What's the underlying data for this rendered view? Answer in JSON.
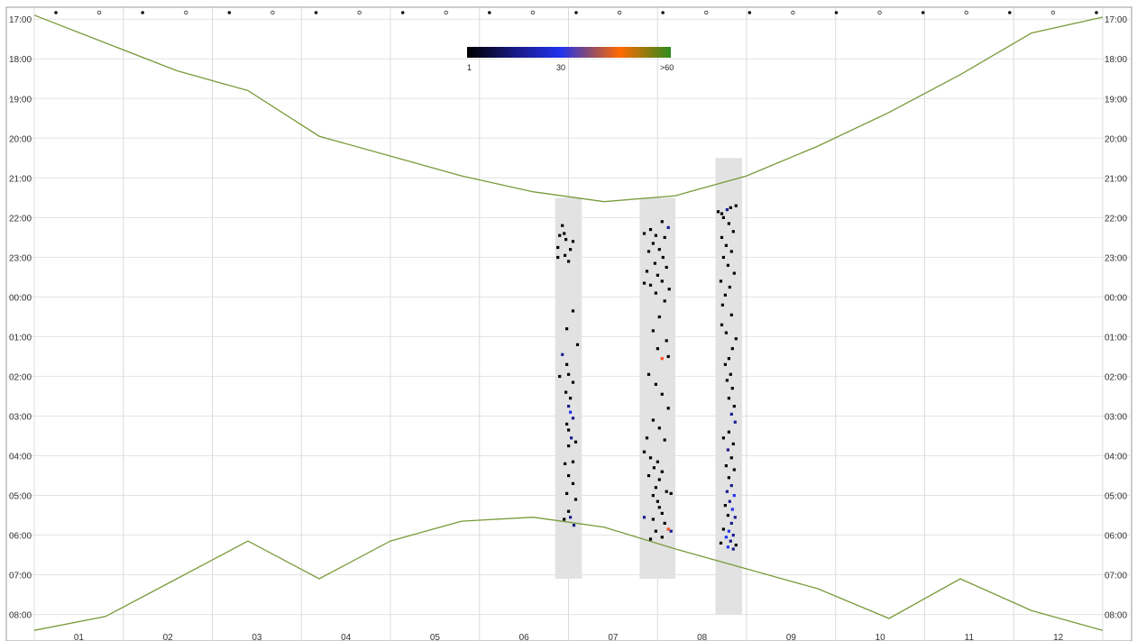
{
  "chart_data": {
    "type": "heatmap",
    "title": "",
    "x_axis": {
      "tick_labels": [
        "01",
        "02",
        "03",
        "04",
        "05",
        "06",
        "07",
        "08",
        "09",
        "10",
        "11",
        "12"
      ]
    },
    "y_axis": {
      "tick_labels": [
        "17:00",
        "18:00",
        "19:00",
        "20:00",
        "21:00",
        "22:00",
        "23:00",
        "00:00",
        "01:00",
        "02:00",
        "03:00",
        "04:00",
        "05:00",
        "06:00",
        "07:00",
        "08:00"
      ],
      "range_hours": [
        16.7,
        32.6
      ],
      "direction": "down"
    },
    "colorbar": {
      "labels": [
        "1",
        "30",
        ">60"
      ],
      "colors": [
        "#000000",
        "#1a1a8c",
        "#2233ee",
        "#8a4a70",
        "#ff6a00",
        "#2e8b1e"
      ]
    },
    "curve_color": "#7a9a3a",
    "moon_markers": [
      "full",
      "new",
      "full",
      "new",
      "full",
      "new",
      "full",
      "new",
      "full",
      "new",
      "full",
      "new",
      "full",
      "new",
      "full",
      "new",
      "full",
      "new",
      "full",
      "new",
      "full",
      "new",
      "full",
      "new",
      "full"
    ],
    "twilight": {
      "evening_hours": [
        16.9,
        17.6,
        18.3,
        18.8,
        19.95,
        20.45,
        20.95,
        21.35,
        21.6,
        21.45,
        20.95,
        20.2,
        19.35,
        18.4,
        17.35,
        16.95
      ],
      "morning_hours": [
        32.4,
        32.05,
        31.1,
        30.15,
        31.1,
        30.15,
        29.65,
        29.55,
        29.8,
        30.35,
        30.85,
        31.35,
        32.1,
        31.1,
        31.9,
        32.4
      ]
    },
    "sampling_periods": [
      {
        "x": [
          6.35,
          6.65
        ],
        "hours": [
          21.5,
          31.1
        ]
      },
      {
        "x": [
          7.3,
          7.7
        ],
        "hours": [
          21.5,
          31.1
        ]
      },
      {
        "x": [
          8.15,
          8.45
        ],
        "hours": [
          20.5,
          32.0
        ]
      }
    ],
    "detections": [
      {
        "x": 6.43,
        "h": 22.2,
        "c": 1
      },
      {
        "x": 6.45,
        "h": 22.4,
        "c": 1
      },
      {
        "x": 6.47,
        "h": 22.55,
        "c": 3
      },
      {
        "x": 6.4,
        "h": 22.45,
        "c": 1
      },
      {
        "x": 6.38,
        "h": 22.75,
        "c": 1
      },
      {
        "x": 6.52,
        "h": 22.8,
        "c": 2
      },
      {
        "x": 6.55,
        "h": 22.6,
        "c": 2
      },
      {
        "x": 6.46,
        "h": 22.95,
        "c": 1
      },
      {
        "x": 6.38,
        "h": 23.0,
        "c": 1
      },
      {
        "x": 6.5,
        "h": 23.1,
        "c": 1
      },
      {
        "x": 6.48,
        "h": 24.8,
        "c": 1
      },
      {
        "x": 6.55,
        "h": 24.35,
        "c": 1
      },
      {
        "x": 6.6,
        "h": 25.2,
        "c": 1
      },
      {
        "x": 6.43,
        "h": 25.45,
        "c": 12
      },
      {
        "x": 6.48,
        "h": 25.7,
        "c": 1
      },
      {
        "x": 6.5,
        "h": 25.95,
        "c": 1
      },
      {
        "x": 6.4,
        "h": 26.0,
        "c": 1
      },
      {
        "x": 6.55,
        "h": 26.15,
        "c": 1
      },
      {
        "x": 6.47,
        "h": 26.4,
        "c": 1
      },
      {
        "x": 6.52,
        "h": 26.55,
        "c": 1
      },
      {
        "x": 6.5,
        "h": 26.75,
        "c": 12
      },
      {
        "x": 6.52,
        "h": 26.9,
        "c": 18
      },
      {
        "x": 6.55,
        "h": 27.05,
        "c": 14
      },
      {
        "x": 6.48,
        "h": 27.2,
        "c": 1
      },
      {
        "x": 6.5,
        "h": 27.35,
        "c": 1
      },
      {
        "x": 6.53,
        "h": 27.55,
        "c": 8
      },
      {
        "x": 6.58,
        "h": 27.65,
        "c": 1
      },
      {
        "x": 6.5,
        "h": 27.75,
        "c": 1
      },
      {
        "x": 6.46,
        "h": 28.2,
        "c": 1
      },
      {
        "x": 6.55,
        "h": 28.15,
        "c": 1
      },
      {
        "x": 6.5,
        "h": 28.5,
        "c": 1
      },
      {
        "x": 6.55,
        "h": 28.7,
        "c": 1
      },
      {
        "x": 6.48,
        "h": 28.95,
        "c": 1
      },
      {
        "x": 6.58,
        "h": 29.1,
        "c": 1
      },
      {
        "x": 6.5,
        "h": 29.4,
        "c": 1
      },
      {
        "x": 6.52,
        "h": 29.55,
        "c": 12
      },
      {
        "x": 6.56,
        "h": 29.75,
        "c": 14
      },
      {
        "x": 6.45,
        "h": 29.6,
        "c": 1
      },
      {
        "x": 7.35,
        "h": 22.4,
        "c": 1
      },
      {
        "x": 7.42,
        "h": 22.3,
        "c": 1
      },
      {
        "x": 7.48,
        "h": 22.45,
        "c": 1
      },
      {
        "x": 7.55,
        "h": 22.1,
        "c": 1
      },
      {
        "x": 7.62,
        "h": 22.25,
        "c": 12
      },
      {
        "x": 7.58,
        "h": 22.5,
        "c": 1
      },
      {
        "x": 7.45,
        "h": 22.65,
        "c": 1
      },
      {
        "x": 7.52,
        "h": 22.8,
        "c": 1
      },
      {
        "x": 7.4,
        "h": 22.85,
        "c": 1
      },
      {
        "x": 7.56,
        "h": 23.0,
        "c": 1
      },
      {
        "x": 7.47,
        "h": 23.15,
        "c": 1
      },
      {
        "x": 7.6,
        "h": 23.25,
        "c": 1
      },
      {
        "x": 7.38,
        "h": 23.35,
        "c": 1
      },
      {
        "x": 7.5,
        "h": 23.45,
        "c": 1
      },
      {
        "x": 7.55,
        "h": 23.6,
        "c": 1
      },
      {
        "x": 7.42,
        "h": 23.7,
        "c": 1
      },
      {
        "x": 7.63,
        "h": 23.8,
        "c": 1
      },
      {
        "x": 7.35,
        "h": 23.65,
        "c": 1
      },
      {
        "x": 7.48,
        "h": 23.9,
        "c": 1
      },
      {
        "x": 7.58,
        "h": 24.1,
        "c": 1
      },
      {
        "x": 7.52,
        "h": 24.5,
        "c": 1
      },
      {
        "x": 7.45,
        "h": 24.85,
        "c": 1
      },
      {
        "x": 7.6,
        "h": 25.1,
        "c": 1
      },
      {
        "x": 7.5,
        "h": 25.3,
        "c": 1
      },
      {
        "x": 7.55,
        "h": 25.55,
        "c": 40
      },
      {
        "x": 7.62,
        "h": 25.5,
        "c": 1
      },
      {
        "x": 7.4,
        "h": 25.95,
        "c": 1
      },
      {
        "x": 7.48,
        "h": 26.2,
        "c": 1
      },
      {
        "x": 7.55,
        "h": 26.45,
        "c": 1
      },
      {
        "x": 7.62,
        "h": 26.8,
        "c": 1
      },
      {
        "x": 7.45,
        "h": 27.1,
        "c": 1
      },
      {
        "x": 7.52,
        "h": 27.3,
        "c": 1
      },
      {
        "x": 7.38,
        "h": 27.55,
        "c": 1
      },
      {
        "x": 7.58,
        "h": 27.6,
        "c": 1
      },
      {
        "x": 7.35,
        "h": 27.9,
        "c": 1
      },
      {
        "x": 7.42,
        "h": 28.05,
        "c": 1
      },
      {
        "x": 7.5,
        "h": 28.15,
        "c": 1
      },
      {
        "x": 7.46,
        "h": 28.3,
        "c": 1
      },
      {
        "x": 7.55,
        "h": 28.4,
        "c": 1
      },
      {
        "x": 7.4,
        "h": 28.5,
        "c": 1
      },
      {
        "x": 7.52,
        "h": 28.6,
        "c": 1
      },
      {
        "x": 7.48,
        "h": 28.8,
        "c": 1
      },
      {
        "x": 7.6,
        "h": 28.9,
        "c": 1
      },
      {
        "x": 7.45,
        "h": 29.0,
        "c": 1
      },
      {
        "x": 7.65,
        "h": 28.95,
        "c": 1
      },
      {
        "x": 7.5,
        "h": 29.15,
        "c": 1
      },
      {
        "x": 7.52,
        "h": 29.3,
        "c": 1
      },
      {
        "x": 7.55,
        "h": 29.45,
        "c": 1
      },
      {
        "x": 7.35,
        "h": 29.55,
        "c": 12
      },
      {
        "x": 7.45,
        "h": 29.6,
        "c": 1
      },
      {
        "x": 7.58,
        "h": 29.7,
        "c": 1
      },
      {
        "x": 7.62,
        "h": 29.85,
        "c": 45
      },
      {
        "x": 7.48,
        "h": 29.9,
        "c": 1
      },
      {
        "x": 7.55,
        "h": 30.05,
        "c": 1
      },
      {
        "x": 7.65,
        "h": 29.9,
        "c": 12
      },
      {
        "x": 7.42,
        "h": 30.1,
        "c": 1
      },
      {
        "x": 8.18,
        "h": 21.85,
        "c": 1
      },
      {
        "x": 8.22,
        "h": 21.9,
        "c": 1
      },
      {
        "x": 8.28,
        "h": 21.8,
        "c": 14
      },
      {
        "x": 8.32,
        "h": 21.75,
        "c": 1
      },
      {
        "x": 8.38,
        "h": 21.7,
        "c": 1
      },
      {
        "x": 8.24,
        "h": 22.0,
        "c": 1
      },
      {
        "x": 8.3,
        "h": 22.15,
        "c": 1
      },
      {
        "x": 8.35,
        "h": 22.35,
        "c": 1
      },
      {
        "x": 8.22,
        "h": 22.5,
        "c": 1
      },
      {
        "x": 8.27,
        "h": 22.7,
        "c": 1
      },
      {
        "x": 8.33,
        "h": 22.85,
        "c": 1
      },
      {
        "x": 8.24,
        "h": 23.0,
        "c": 1
      },
      {
        "x": 8.29,
        "h": 23.2,
        "c": 1
      },
      {
        "x": 8.36,
        "h": 23.4,
        "c": 1
      },
      {
        "x": 8.21,
        "h": 23.6,
        "c": 1
      },
      {
        "x": 8.31,
        "h": 23.75,
        "c": 1
      },
      {
        "x": 8.26,
        "h": 23.95,
        "c": 1
      },
      {
        "x": 8.23,
        "h": 24.2,
        "c": 1
      },
      {
        "x": 8.33,
        "h": 24.45,
        "c": 1
      },
      {
        "x": 8.22,
        "h": 24.7,
        "c": 1
      },
      {
        "x": 8.27,
        "h": 24.9,
        "c": 1
      },
      {
        "x": 8.38,
        "h": 25.05,
        "c": 1
      },
      {
        "x": 8.34,
        "h": 25.3,
        "c": 1
      },
      {
        "x": 8.3,
        "h": 25.55,
        "c": 1
      },
      {
        "x": 8.26,
        "h": 25.7,
        "c": 1
      },
      {
        "x": 8.32,
        "h": 25.95,
        "c": 1
      },
      {
        "x": 8.28,
        "h": 26.1,
        "c": 1
      },
      {
        "x": 8.34,
        "h": 26.3,
        "c": 1
      },
      {
        "x": 8.3,
        "h": 26.55,
        "c": 1
      },
      {
        "x": 8.36,
        "h": 26.75,
        "c": 1
      },
      {
        "x": 8.33,
        "h": 26.95,
        "c": 10
      },
      {
        "x": 8.37,
        "h": 27.15,
        "c": 12
      },
      {
        "x": 8.3,
        "h": 27.4,
        "c": 1
      },
      {
        "x": 8.24,
        "h": 27.55,
        "c": 1
      },
      {
        "x": 8.35,
        "h": 27.7,
        "c": 1
      },
      {
        "x": 8.29,
        "h": 27.85,
        "c": 12
      },
      {
        "x": 8.33,
        "h": 28.05,
        "c": 1
      },
      {
        "x": 8.27,
        "h": 28.25,
        "c": 1
      },
      {
        "x": 8.36,
        "h": 28.35,
        "c": 1
      },
      {
        "x": 8.3,
        "h": 28.55,
        "c": 1
      },
      {
        "x": 8.33,
        "h": 28.75,
        "c": 12
      },
      {
        "x": 8.28,
        "h": 28.9,
        "c": 14
      },
      {
        "x": 8.36,
        "h": 29.0,
        "c": 16
      },
      {
        "x": 8.31,
        "h": 29.15,
        "c": 12
      },
      {
        "x": 8.26,
        "h": 29.25,
        "c": 1
      },
      {
        "x": 8.34,
        "h": 29.35,
        "c": 18
      },
      {
        "x": 8.29,
        "h": 29.5,
        "c": 1
      },
      {
        "x": 8.37,
        "h": 29.55,
        "c": 14
      },
      {
        "x": 8.33,
        "h": 29.7,
        "c": 12
      },
      {
        "x": 8.24,
        "h": 29.85,
        "c": 1
      },
      {
        "x": 8.3,
        "h": 29.9,
        "c": 18
      },
      {
        "x": 8.35,
        "h": 30.0,
        "c": 14
      },
      {
        "x": 8.27,
        "h": 30.05,
        "c": 20
      },
      {
        "x": 8.32,
        "h": 30.15,
        "c": 12
      },
      {
        "x": 8.38,
        "h": 30.25,
        "c": 1
      },
      {
        "x": 8.21,
        "h": 30.2,
        "c": 1
      },
      {
        "x": 8.29,
        "h": 30.3,
        "c": 16
      },
      {
        "x": 8.35,
        "h": 30.35,
        "c": 12
      }
    ]
  }
}
